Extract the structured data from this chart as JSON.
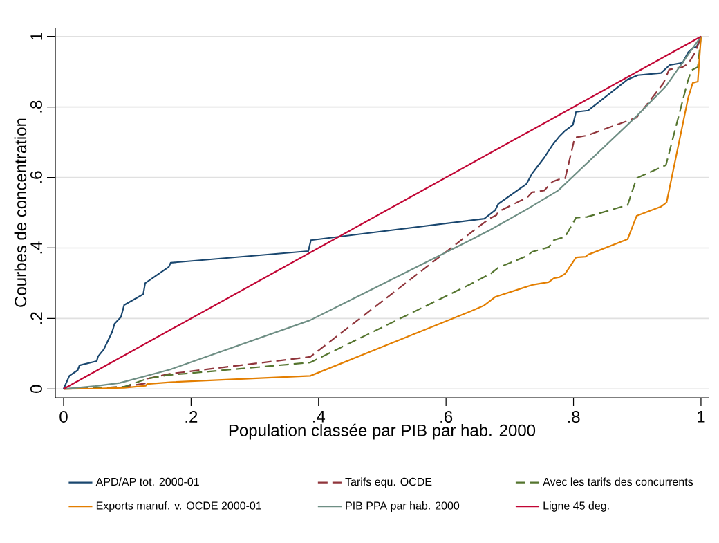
{
  "chart_data": {
    "type": "line",
    "xlabel": "Population classée par PIB par hab. 2000",
    "ylabel": "Courbes de concentration",
    "xlim": [
      -0.013,
      1.012
    ],
    "ylim": [
      -0.025,
      1.025
    ],
    "xticks": [
      0,
      {
        "value": 0.2,
        "label": ".2"
      },
      {
        "value": 0.4,
        "label": ".4"
      },
      {
        "value": 0.6,
        "label": ".6"
      },
      {
        "value": 0.8,
        "label": ".8"
      },
      1
    ],
    "yticks": [
      0,
      {
        "value": 0.2,
        "label": ".2"
      },
      {
        "value": 0.4,
        "label": ".4"
      },
      {
        "value": 0.6,
        "label": ".6"
      },
      {
        "value": 0.8,
        "label": ".8"
      },
      1
    ],
    "grid": "y",
    "legend": "bottom",
    "marker": "none",
    "series": [
      {
        "name": "APD/AP tot. 2000-01",
        "color": "#1a476f",
        "line_style": "solid",
        "x": [
          0,
          0.009,
          0.022,
          0.025,
          0.052,
          0.054,
          0.063,
          0.076,
          0.08,
          0.09,
          0.095,
          0.125,
          0.128,
          0.165,
          0.168,
          0.384,
          0.388,
          0.66,
          0.677,
          0.682,
          0.726,
          0.735,
          0.754,
          0.767,
          0.778,
          0.787,
          0.799,
          0.804,
          0.823,
          0.885,
          0.901,
          0.937,
          0.951,
          0.971,
          0.98,
          0.987,
          0.993,
          1
        ],
        "values": [
          0,
          0.037,
          0.053,
          0.067,
          0.079,
          0.092,
          0.112,
          0.161,
          0.185,
          0.204,
          0.238,
          0.269,
          0.3,
          0.346,
          0.358,
          0.391,
          0.422,
          0.483,
          0.507,
          0.525,
          0.581,
          0.611,
          0.656,
          0.692,
          0.717,
          0.733,
          0.749,
          0.786,
          0.79,
          0.878,
          0.89,
          0.896,
          0.919,
          0.925,
          0.955,
          0.967,
          0.97,
          1
        ]
      },
      {
        "name": "Tarifs equ. OCDE",
        "color": "#90353b",
        "line_style": "dashed",
        "x": [
          0,
          0.05,
          0.095,
          0.129,
          0.131,
          0.167,
          0.387,
          0.638,
          0.668,
          0.679,
          0.682,
          0.728,
          0.735,
          0.754,
          0.767,
          0.778,
          0.787,
          0.802,
          0.821,
          0.899,
          0.941,
          0.95,
          0.971,
          0.98,
          0.991,
          1
        ],
        "values": [
          0,
          0.002,
          0.006,
          0.016,
          0.029,
          0.043,
          0.091,
          0.442,
          0.483,
          0.493,
          0.503,
          0.544,
          0.558,
          0.563,
          0.588,
          0.595,
          0.598,
          0.713,
          0.719,
          0.77,
          0.867,
          0.906,
          0.913,
          0.923,
          0.955,
          1
        ]
      },
      {
        "name": "Avec les tarifs des concurrents",
        "color": "#55752f",
        "line_style": "dashed",
        "x": [
          0,
          0.05,
          0.095,
          0.131,
          0.163,
          0.387,
          0.638,
          0.67,
          0.682,
          0.728,
          0.735,
          0.761,
          0.769,
          0.787,
          0.804,
          0.821,
          0.885,
          0.899,
          0.945,
          0.979,
          0.985,
          0.995,
          1
        ],
        "values": [
          0,
          0.002,
          0.006,
          0.029,
          0.039,
          0.075,
          0.297,
          0.327,
          0.344,
          0.378,
          0.389,
          0.402,
          0.422,
          0.432,
          0.486,
          0.488,
          0.522,
          0.598,
          0.635,
          0.872,
          0.904,
          0.913,
          1
        ]
      },
      {
        "name": "Exports manuf. v. OCDE 2000-01",
        "color": "#e37e00",
        "line_style": "solid",
        "x": [
          0,
          0.05,
          0.095,
          0.129,
          0.131,
          0.167,
          0.387,
          0.638,
          0.66,
          0.677,
          0.735,
          0.761,
          0.769,
          0.778,
          0.787,
          0.804,
          0.819,
          0.823,
          0.885,
          0.899,
          0.937,
          0.946,
          0.98,
          0.987,
          0.995,
          1
        ],
        "values": [
          0,
          0.001,
          0.003,
          0.009,
          0.014,
          0.019,
          0.037,
          0.22,
          0.237,
          0.261,
          0.295,
          0.303,
          0.314,
          0.317,
          0.327,
          0.373,
          0.375,
          0.381,
          0.425,
          0.491,
          0.517,
          0.529,
          0.827,
          0.868,
          0.872,
          1
        ]
      },
      {
        "name": "PIB PPA par hab. 2000",
        "color": "#6e8e84",
        "line_style": "solid",
        "x": [
          0,
          0.05,
          0.088,
          0.167,
          0.387,
          0.638,
          0.67,
          0.728,
          0.776,
          0.899,
          0.945,
          1
        ],
        "values": [
          0,
          0.008,
          0.017,
          0.055,
          0.195,
          0.422,
          0.452,
          0.511,
          0.563,
          0.774,
          0.859,
          1
        ]
      },
      {
        "name": "Ligne 45 deg.",
        "color": "#c10534",
        "line_style": "solid",
        "x": [
          0,
          1
        ],
        "values": [
          0,
          1
        ]
      }
    ]
  }
}
